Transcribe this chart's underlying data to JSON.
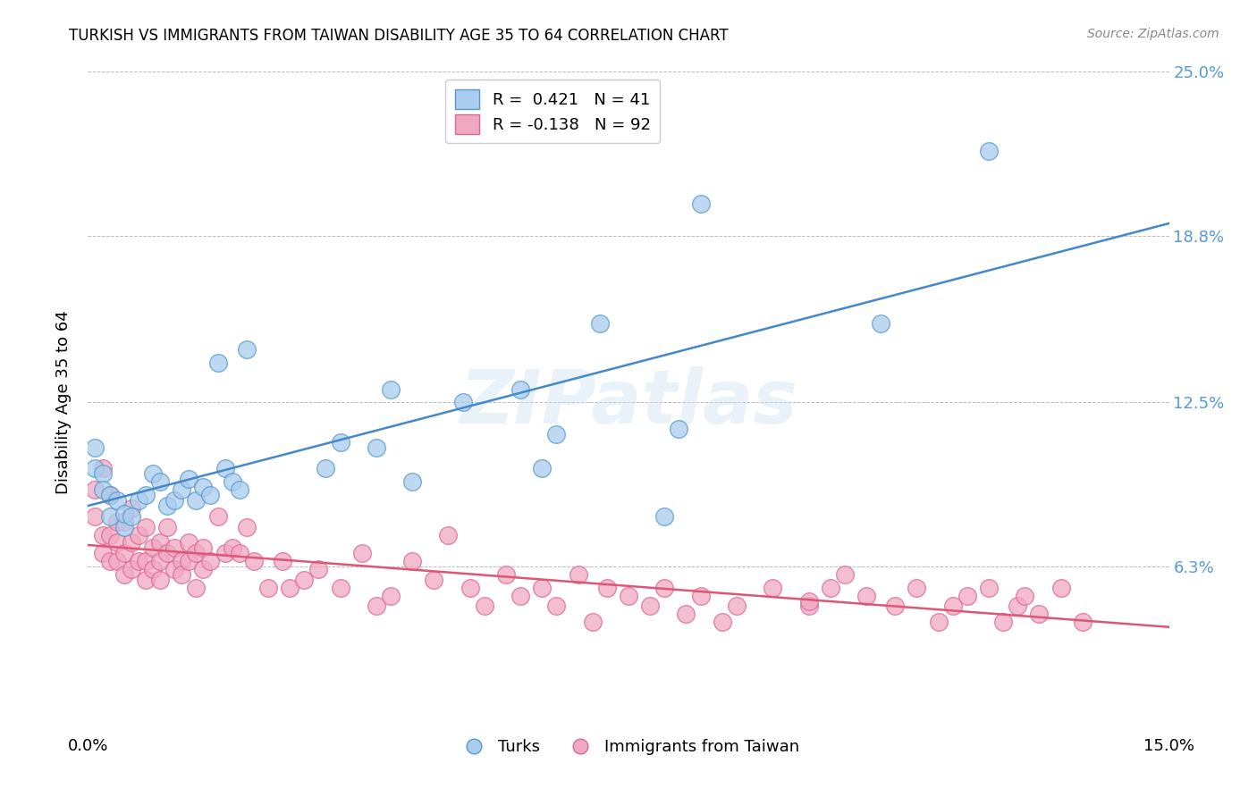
{
  "title": "TURKISH VS IMMIGRANTS FROM TAIWAN DISABILITY AGE 35 TO 64 CORRELATION CHART",
  "source": "Source: ZipAtlas.com",
  "ylabel": "Disability Age 35 to 64",
  "xlim": [
    0.0,
    0.15
  ],
  "ylim": [
    0.0,
    0.25
  ],
  "turks_color": "#aaccee",
  "turks_edge": "#5599cc",
  "taiwan_color": "#f0a8c0",
  "taiwan_edge": "#dd6699",
  "trendline_turks_color": "#4488cc",
  "trendline_taiwan_color": "#dd5577",
  "right_tick_color": "#5599dd",
  "watermark": "ZIPatlas",
  "turks_x": [
    0.001,
    0.001,
    0.002,
    0.002,
    0.003,
    0.003,
    0.004,
    0.005,
    0.005,
    0.006,
    0.007,
    0.008,
    0.009,
    0.01,
    0.011,
    0.012,
    0.013,
    0.014,
    0.015,
    0.016,
    0.017,
    0.018,
    0.019,
    0.02,
    0.021,
    0.022,
    0.033,
    0.035,
    0.04,
    0.042,
    0.045,
    0.052,
    0.06,
    0.063,
    0.065,
    0.071,
    0.08,
    0.082,
    0.085,
    0.11,
    0.125
  ],
  "turks_y": [
    0.1,
    0.108,
    0.098,
    0.092,
    0.09,
    0.082,
    0.088,
    0.078,
    0.083,
    0.082,
    0.088,
    0.09,
    0.098,
    0.095,
    0.086,
    0.088,
    0.092,
    0.096,
    0.088,
    0.093,
    0.09,
    0.14,
    0.1,
    0.095,
    0.092,
    0.145,
    0.1,
    0.11,
    0.108,
    0.13,
    0.095,
    0.125,
    0.13,
    0.1,
    0.113,
    0.155,
    0.082,
    0.115,
    0.2,
    0.155,
    0.22
  ],
  "taiwan_x": [
    0.001,
    0.001,
    0.002,
    0.002,
    0.002,
    0.003,
    0.003,
    0.003,
    0.004,
    0.004,
    0.004,
    0.005,
    0.005,
    0.005,
    0.006,
    0.006,
    0.006,
    0.007,
    0.007,
    0.008,
    0.008,
    0.008,
    0.009,
    0.009,
    0.01,
    0.01,
    0.01,
    0.011,
    0.011,
    0.012,
    0.012,
    0.013,
    0.013,
    0.014,
    0.014,
    0.015,
    0.015,
    0.016,
    0.016,
    0.017,
    0.018,
    0.019,
    0.02,
    0.021,
    0.022,
    0.023,
    0.025,
    0.027,
    0.028,
    0.03,
    0.032,
    0.035,
    0.038,
    0.04,
    0.042,
    0.045,
    0.048,
    0.05,
    0.053,
    0.055,
    0.058,
    0.06,
    0.063,
    0.065,
    0.068,
    0.07,
    0.072,
    0.075,
    0.078,
    0.08,
    0.083,
    0.085,
    0.088,
    0.09,
    0.095,
    0.1,
    0.105,
    0.108,
    0.112,
    0.115,
    0.118,
    0.12,
    0.122,
    0.125,
    0.127,
    0.129,
    0.13,
    0.132,
    0.135,
    0.138,
    0.1,
    0.103
  ],
  "taiwan_y": [
    0.092,
    0.082,
    0.075,
    0.068,
    0.1,
    0.09,
    0.075,
    0.065,
    0.08,
    0.072,
    0.065,
    0.08,
    0.068,
    0.06,
    0.085,
    0.072,
    0.062,
    0.075,
    0.065,
    0.078,
    0.065,
    0.058,
    0.07,
    0.062,
    0.072,
    0.065,
    0.058,
    0.068,
    0.078,
    0.07,
    0.062,
    0.065,
    0.06,
    0.072,
    0.065,
    0.068,
    0.055,
    0.07,
    0.062,
    0.065,
    0.082,
    0.068,
    0.07,
    0.068,
    0.078,
    0.065,
    0.055,
    0.065,
    0.055,
    0.058,
    0.062,
    0.055,
    0.068,
    0.048,
    0.052,
    0.065,
    0.058,
    0.075,
    0.055,
    0.048,
    0.06,
    0.052,
    0.055,
    0.048,
    0.06,
    0.042,
    0.055,
    0.052,
    0.048,
    0.055,
    0.045,
    0.052,
    0.042,
    0.048,
    0.055,
    0.048,
    0.06,
    0.052,
    0.048,
    0.055,
    0.042,
    0.048,
    0.052,
    0.055,
    0.042,
    0.048,
    0.052,
    0.045,
    0.055,
    0.042,
    0.05,
    0.055
  ],
  "turks_trend": [
    0.088,
    0.168
  ],
  "taiwan_trend": [
    0.082,
    0.058
  ],
  "figsize": [
    14.06,
    8.92
  ],
  "dpi": 100
}
